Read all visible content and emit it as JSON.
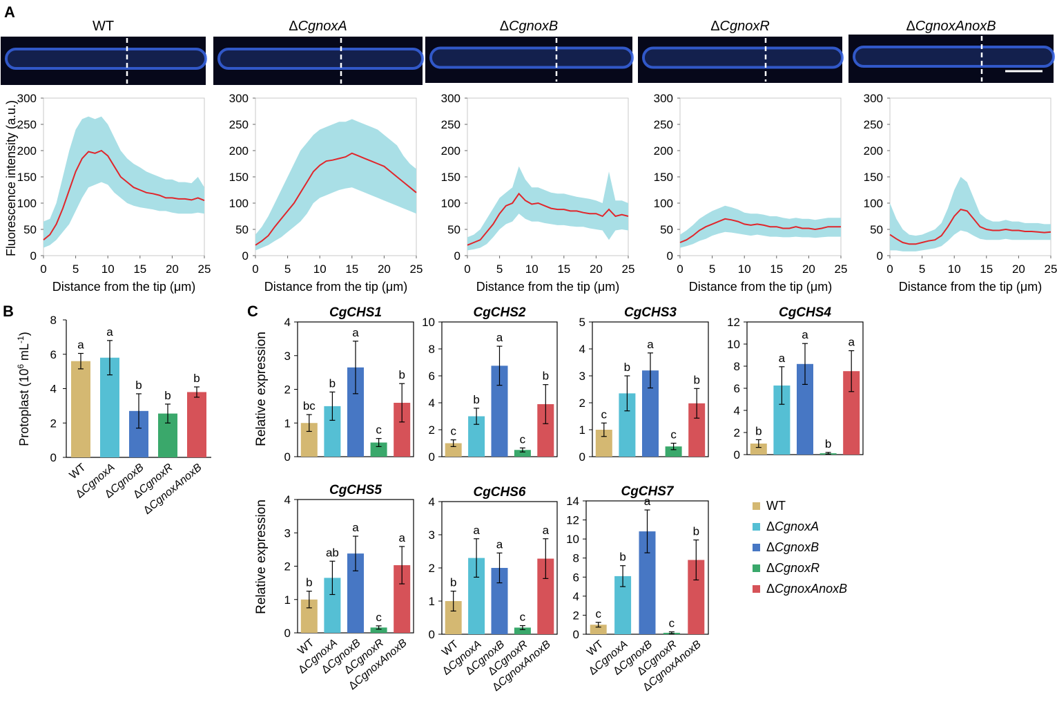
{
  "panels": {
    "A": "A",
    "B": "B",
    "C": "C"
  },
  "colors": {
    "WT": "#d4b872",
    "CgnoxA": "#55bfd4",
    "CgnoxB": "#4777c4",
    "CgnoxR": "#3aa86b",
    "CgnoxAnoxB": "#d65258",
    "profile_line": "#e0262b",
    "profile_band": "#a9dfe6",
    "micro_bg": "#06081a",
    "micro_hypha": "#3a66e8"
  },
  "chart_data": [
    {
      "type": "line",
      "panel": "A",
      "subplots": [
        {
          "title": "WT",
          "x": [
            0,
            1,
            2,
            3,
            4,
            5,
            6,
            7,
            8,
            9,
            10,
            11,
            12,
            13,
            14,
            15,
            16,
            17,
            18,
            19,
            20,
            21,
            22,
            23,
            24,
            25
          ],
          "mean": [
            30,
            40,
            60,
            90,
            125,
            160,
            185,
            198,
            195,
            200,
            190,
            170,
            150,
            140,
            130,
            125,
            120,
            118,
            115,
            110,
            110,
            108,
            108,
            106,
            110,
            105
          ],
          "band_hi": [
            65,
            70,
            100,
            150,
            200,
            240,
            260,
            265,
            260,
            265,
            250,
            225,
            200,
            185,
            175,
            168,
            160,
            155,
            150,
            145,
            145,
            140,
            140,
            138,
            150,
            130
          ],
          "band_lo": [
            15,
            20,
            30,
            45,
            60,
            85,
            110,
            130,
            135,
            140,
            135,
            120,
            110,
            100,
            95,
            92,
            90,
            88,
            85,
            85,
            82,
            80,
            80,
            80,
            82,
            80
          ]
        },
        {
          "title": "ΔCgnoxA",
          "x": [
            0,
            1,
            2,
            3,
            4,
            5,
            6,
            7,
            8,
            9,
            10,
            11,
            12,
            13,
            14,
            15,
            16,
            17,
            18,
            19,
            20,
            21,
            22,
            23,
            24,
            25
          ],
          "mean": [
            20,
            28,
            38,
            55,
            70,
            85,
            100,
            120,
            140,
            160,
            172,
            180,
            182,
            185,
            188,
            195,
            190,
            185,
            180,
            175,
            170,
            160,
            150,
            140,
            130,
            120
          ],
          "band_hi": [
            40,
            55,
            75,
            100,
            125,
            150,
            175,
            200,
            215,
            230,
            240,
            245,
            250,
            255,
            255,
            260,
            255,
            250,
            245,
            240,
            230,
            220,
            210,
            190,
            175,
            165
          ],
          "band_lo": [
            10,
            15,
            20,
            28,
            35,
            45,
            55,
            65,
            80,
            100,
            110,
            115,
            120,
            125,
            128,
            130,
            125,
            120,
            115,
            110,
            105,
            100,
            95,
            90,
            85,
            80
          ]
        },
        {
          "title": "ΔCgnoxB",
          "x": [
            0,
            1,
            2,
            3,
            4,
            5,
            6,
            7,
            8,
            9,
            10,
            11,
            12,
            13,
            14,
            15,
            16,
            17,
            18,
            19,
            20,
            21,
            22,
            23,
            24,
            25
          ],
          "mean": [
            20,
            25,
            30,
            45,
            60,
            80,
            95,
            100,
            118,
            105,
            98,
            100,
            95,
            90,
            88,
            88,
            85,
            85,
            82,
            80,
            80,
            75,
            88,
            75,
            78,
            75
          ],
          "band_hi": [
            35,
            40,
            50,
            70,
            90,
            110,
            120,
            130,
            170,
            145,
            130,
            130,
            125,
            120,
            118,
            118,
            115,
            112,
            110,
            108,
            105,
            100,
            160,
            105,
            105,
            100
          ],
          "band_lo": [
            10,
            12,
            15,
            22,
            35,
            50,
            60,
            65,
            80,
            70,
            65,
            65,
            62,
            60,
            58,
            58,
            56,
            55,
            55,
            52,
            50,
            48,
            30,
            48,
            50,
            48
          ]
        },
        {
          "title": "ΔCgnoxR",
          "x": [
            0,
            1,
            2,
            3,
            4,
            5,
            6,
            7,
            8,
            9,
            10,
            11,
            12,
            13,
            14,
            15,
            16,
            17,
            18,
            19,
            20,
            21,
            22,
            23,
            24,
            25
          ],
          "mean": [
            25,
            30,
            38,
            48,
            55,
            60,
            65,
            70,
            68,
            65,
            60,
            58,
            60,
            58,
            55,
            55,
            52,
            52,
            55,
            52,
            52,
            50,
            52,
            55,
            55,
            55
          ],
          "band_hi": [
            40,
            48,
            58,
            70,
            78,
            85,
            90,
            95,
            92,
            88,
            82,
            80,
            80,
            78,
            75,
            75,
            72,
            70,
            72,
            70,
            70,
            68,
            70,
            72,
            72,
            72
          ],
          "band_lo": [
            15,
            18,
            22,
            28,
            32,
            38,
            42,
            45,
            44,
            42,
            40,
            38,
            40,
            38,
            36,
            36,
            35,
            35,
            36,
            35,
            35,
            34,
            35,
            36,
            36,
            36
          ]
        },
        {
          "title": "ΔCgnoxAnoxB",
          "x": [
            0,
            1,
            2,
            3,
            4,
            5,
            6,
            7,
            8,
            9,
            10,
            11,
            12,
            13,
            14,
            15,
            16,
            17,
            18,
            19,
            20,
            21,
            22,
            23,
            24,
            25
          ],
          "mean": [
            40,
            32,
            25,
            22,
            22,
            25,
            28,
            30,
            38,
            55,
            75,
            88,
            85,
            70,
            55,
            50,
            48,
            48,
            50,
            48,
            48,
            46,
            46,
            45,
            44,
            45
          ],
          "band_hi": [
            100,
            70,
            50,
            40,
            38,
            40,
            45,
            50,
            62,
            90,
            125,
            150,
            140,
            110,
            80,
            70,
            65,
            65,
            68,
            65,
            65,
            62,
            62,
            62,
            60,
            60
          ],
          "band_lo": [
            10,
            10,
            8,
            8,
            8,
            10,
            12,
            14,
            18,
            28,
            40,
            48,
            45,
            38,
            32,
            30,
            30,
            30,
            32,
            30,
            30,
            30,
            30,
            30,
            30,
            30
          ]
        }
      ],
      "xlabel": "Distance from the tip (μm)",
      "ylabel": "Fluorescence intensity (a.u.)",
      "xlim": [
        0,
        25
      ],
      "ylim": [
        0,
        300
      ],
      "xticks": [
        0,
        5,
        10,
        15,
        20,
        25
      ],
      "yticks": [
        0,
        50,
        100,
        150,
        200,
        250,
        300
      ]
    },
    {
      "type": "bar",
      "panel": "B",
      "categories": [
        "WT",
        "ΔCgnoxA",
        "ΔCgnoxB",
        "ΔCgnoxR",
        "ΔCgnoxAnoxB"
      ],
      "values": [
        5.6,
        5.8,
        2.7,
        2.55,
        3.8
      ],
      "errors": [
        0.45,
        1.0,
        1.0,
        0.55,
        0.3
      ],
      "letters": [
        "a",
        "a",
        "b",
        "b",
        "b"
      ],
      "ylabel": "Protoplast (10",
      "ylabel_sup1": "6",
      "ylabel_mid": " mL",
      "ylabel_sup2": "-1",
      "ylabel_end": ")",
      "ylim": [
        0,
        8
      ],
      "yticks": [
        0,
        2,
        4,
        6,
        8
      ]
    },
    {
      "type": "bar",
      "panel": "C",
      "categories": [
        "WT",
        "ΔCgnoxA",
        "ΔCgnoxB",
        "ΔCgnoxR",
        "ΔCgnoxAnoxB"
      ],
      "ylabel": "Relative expression",
      "subplots": [
        {
          "title": "CgCHS1",
          "values": [
            1.0,
            1.5,
            2.65,
            0.42,
            1.6
          ],
          "errors": [
            0.25,
            0.42,
            0.78,
            0.12,
            0.57
          ],
          "letters": [
            "bc",
            "b",
            "a",
            "c",
            "b"
          ],
          "ylim": [
            0,
            4
          ],
          "yticks": [
            0,
            1,
            2,
            3,
            4
          ]
        },
        {
          "title": "CgCHS2",
          "values": [
            1.0,
            3.0,
            6.75,
            0.5,
            3.9
          ],
          "errors": [
            0.25,
            0.6,
            1.45,
            0.15,
            1.45
          ],
          "letters": [
            "c",
            "b",
            "a",
            "c",
            "b"
          ],
          "ylim": [
            0,
            10
          ],
          "yticks": [
            0,
            2,
            4,
            6,
            8,
            10
          ]
        },
        {
          "title": "CgCHS3",
          "values": [
            1.0,
            2.35,
            3.2,
            0.38,
            1.98
          ],
          "errors": [
            0.25,
            0.65,
            0.65,
            0.12,
            0.55
          ],
          "letters": [
            "c",
            "b",
            "a",
            "c",
            "b"
          ],
          "ylim": [
            0,
            5
          ],
          "yticks": [
            0,
            1,
            2,
            3,
            4,
            5
          ]
        },
        {
          "title": "CgCHS4",
          "values": [
            1.0,
            6.25,
            8.2,
            0.12,
            7.55
          ],
          "errors": [
            0.35,
            1.7,
            1.85,
            0.08,
            1.85
          ],
          "letters": [
            "b",
            "a",
            "a",
            "b",
            "a"
          ],
          "ylim": [
            0,
            12
          ],
          "yticks": [
            0,
            2,
            4,
            6,
            8,
            10,
            12
          ]
        },
        {
          "title": "CgCHS5",
          "values": [
            1.0,
            1.65,
            2.38,
            0.16,
            2.03
          ],
          "errors": [
            0.25,
            0.5,
            0.52,
            0.05,
            0.56
          ],
          "letters": [
            "b",
            "ab",
            "a",
            "c",
            "a"
          ],
          "ylim": [
            0,
            4
          ],
          "yticks": [
            0,
            1,
            2,
            3,
            4
          ]
        },
        {
          "title": "CgCHS6",
          "values": [
            1.0,
            2.3,
            2.0,
            0.2,
            2.28
          ],
          "errors": [
            0.3,
            0.58,
            0.45,
            0.06,
            0.6
          ],
          "letters": [
            "b",
            "a",
            "a",
            "c",
            "a"
          ],
          "ylim": [
            0,
            4
          ],
          "yticks": [
            0,
            1,
            2,
            3,
            4
          ]
        },
        {
          "title": "CgCHS7",
          "values": [
            1.0,
            6.1,
            10.8,
            0.15,
            7.8
          ],
          "errors": [
            0.25,
            1.1,
            2.25,
            0.1,
            2.1
          ],
          "letters": [
            "c",
            "b",
            "a",
            "c",
            "b"
          ],
          "ylim": [
            0,
            14
          ],
          "yticks": [
            0,
            2,
            4,
            6,
            8,
            10,
            12,
            14
          ]
        }
      ]
    }
  ],
  "legend": [
    "WT",
    "ΔCgnoxA",
    "ΔCgnoxB",
    "ΔCgnoxR",
    "ΔCgnoxAnoxB"
  ]
}
